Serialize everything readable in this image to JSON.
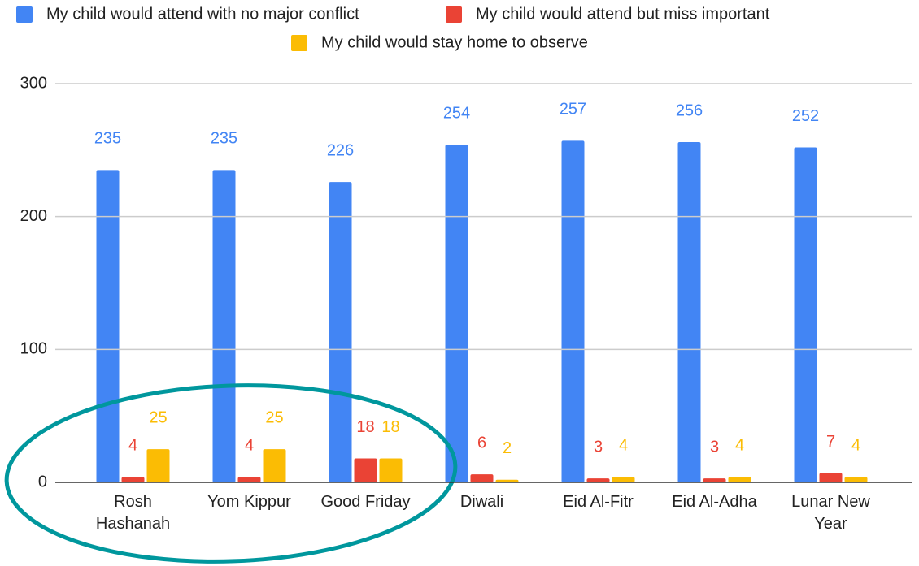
{
  "chart_data": {
    "type": "bar",
    "categories": [
      "Rosh Hashanah",
      "Yom Kippur",
      "Good Friday",
      "Diwali",
      "Eid Al-Fitr",
      "Eid Al-Adha",
      "Lunar New Year"
    ],
    "series": [
      {
        "name": "My child would attend with no major conflict",
        "color": "#4285f4",
        "values": [
          235,
          235,
          226,
          254,
          257,
          256,
          252
        ]
      },
      {
        "name": "My child would attend but miss important",
        "color": "#ea4335",
        "values": [
          4,
          4,
          18,
          6,
          3,
          3,
          7
        ]
      },
      {
        "name": "My child would stay home to observe",
        "color": "#fbbc04",
        "values": [
          25,
          25,
          18,
          2,
          4,
          4,
          4
        ]
      }
    ],
    "ylim": [
      0,
      300
    ],
    "yticks": [
      0,
      100,
      200,
      300
    ],
    "grid": true,
    "legend": "top"
  }
}
